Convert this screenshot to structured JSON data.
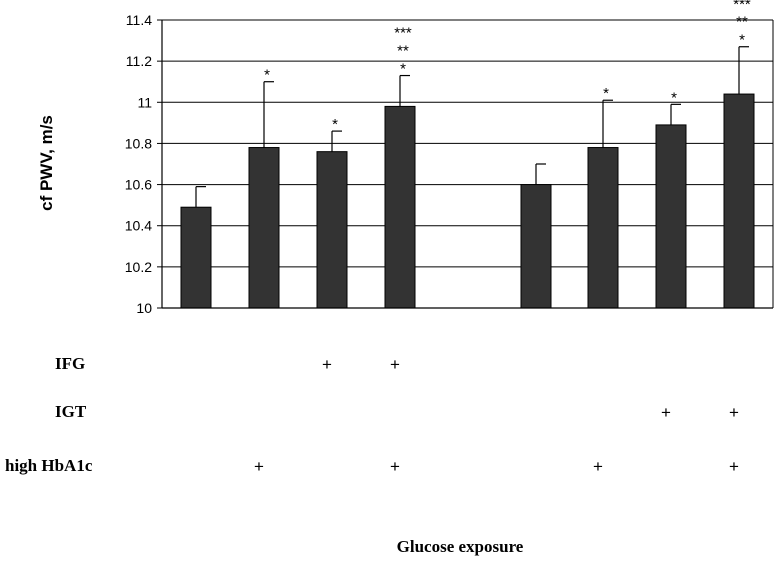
{
  "chart_data": {
    "type": "bar",
    "ylabel": "cf PWV, m/s",
    "xlabel": "Glucose exposure",
    "ylim": [
      10,
      11.4
    ],
    "yticks": [
      "10",
      "10.2",
      "10.4",
      "10.6",
      "10.8",
      "11",
      "11.2",
      "11.4"
    ],
    "grid": true,
    "bar_color": "#333333",
    "values": [
      10.49,
      10.78,
      10.76,
      10.98,
      10.6,
      10.78,
      10.89,
      11.04
    ],
    "errors": [
      0.1,
      0.32,
      0.1,
      0.15,
      0.1,
      0.23,
      0.1,
      0.23
    ],
    "significance": [
      [],
      [
        "*"
      ],
      [
        "*"
      ],
      [
        "*",
        "**",
        "***"
      ],
      [],
      [
        "*"
      ],
      [
        "*"
      ],
      [
        "*",
        "**",
        "***"
      ]
    ],
    "factor_rows": [
      {
        "label": "IFG",
        "marks": [
          false,
          false,
          true,
          true,
          false,
          false,
          false,
          false
        ]
      },
      {
        "label": "IGT",
        "marks": [
          false,
          false,
          false,
          false,
          false,
          false,
          true,
          true
        ]
      },
      {
        "label": "high HbA1c",
        "marks": [
          false,
          true,
          false,
          true,
          false,
          true,
          false,
          true
        ]
      }
    ],
    "mark_symbol": "+"
  }
}
